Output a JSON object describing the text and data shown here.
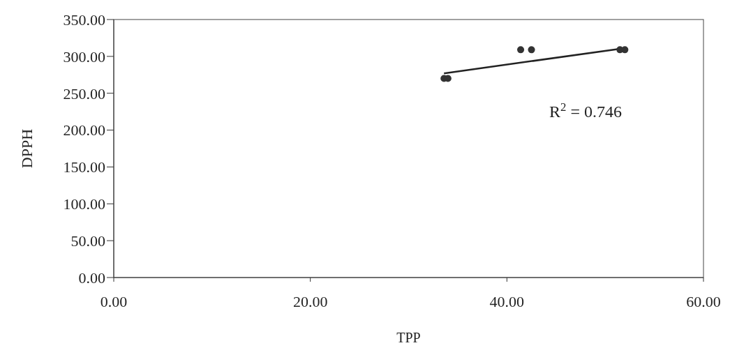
{
  "chart_data": {
    "type": "scatter",
    "xlabel": "TPP",
    "ylabel": "DPPH",
    "xlim": [
      0,
      60
    ],
    "ylim": [
      0,
      350
    ],
    "xticks": [
      {
        "value": 0,
        "label": "0.00"
      },
      {
        "value": 20,
        "label": "20.00"
      },
      {
        "value": 40,
        "label": "40.00"
      },
      {
        "value": 60,
        "label": "60.00"
      }
    ],
    "yticks": [
      {
        "value": 0,
        "label": "0.00"
      },
      {
        "value": 50,
        "label": "50.00"
      },
      {
        "value": 100,
        "label": "100.00"
      },
      {
        "value": 150,
        "label": "150.00"
      },
      {
        "value": 200,
        "label": "200.00"
      },
      {
        "value": 250,
        "label": "250.00"
      },
      {
        "value": 300,
        "label": "300.00"
      },
      {
        "value": 350,
        "label": "350.00"
      }
    ],
    "marker": "circle",
    "series": [
      {
        "type": "scatter",
        "color": "#333333",
        "x": [
          33.6,
          34.0,
          41.4,
          42.5,
          51.5,
          52.0
        ],
        "values": [
          270,
          270,
          309,
          309,
          309,
          309
        ]
      },
      {
        "type": "line",
        "color": "#222222",
        "line_style": "solid",
        "marker": "none",
        "x": [
          33.6,
          51.9
        ],
        "values": [
          277,
          311
        ]
      }
    ],
    "annotations": [
      "R$^{2}$ = 0.746"
    ]
  }
}
